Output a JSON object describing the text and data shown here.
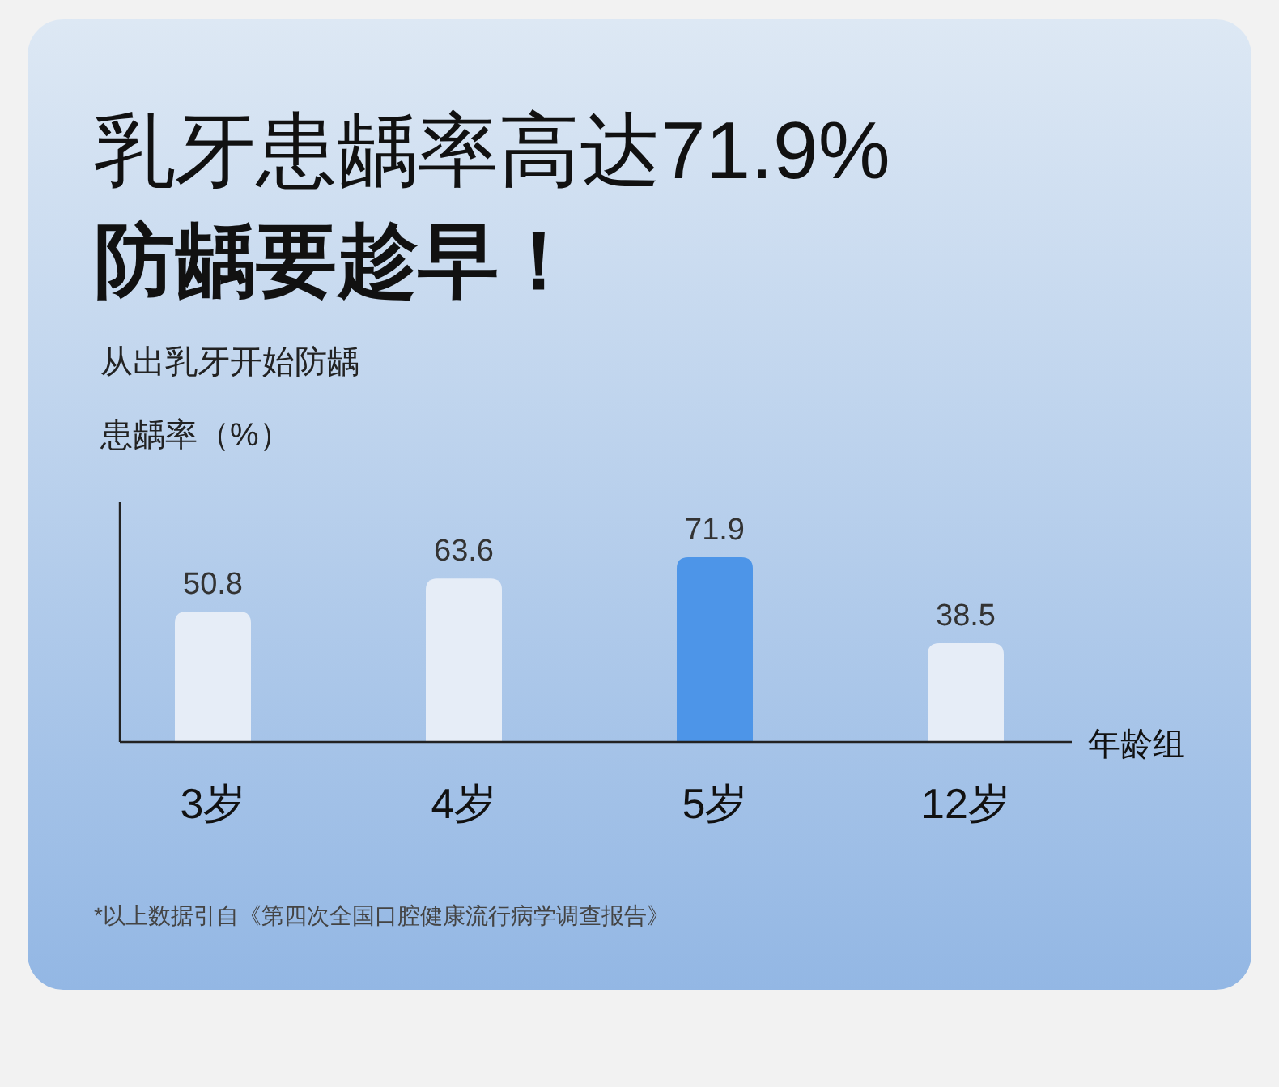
{
  "chart_data": {
    "type": "bar",
    "title": "乳牙患龋率高达71.9%\n防龋要趁早！",
    "subtitle": "从出乳牙开始防龋",
    "ylabel": "患龋率（%）",
    "xlabel": "年龄组",
    "categories": [
      "3岁",
      "4岁",
      "5岁",
      "12岁"
    ],
    "values": [
      50.8,
      63.6,
      71.9,
      38.5
    ],
    "colors": [
      "#e6edf7",
      "#e6edf7",
      "#4d95e8",
      "#e6edf7"
    ],
    "data_labels": true,
    "annotations": [
      "*以上数据引自《第四次全国口腔健康流行病学调查报告》"
    ]
  }
}
